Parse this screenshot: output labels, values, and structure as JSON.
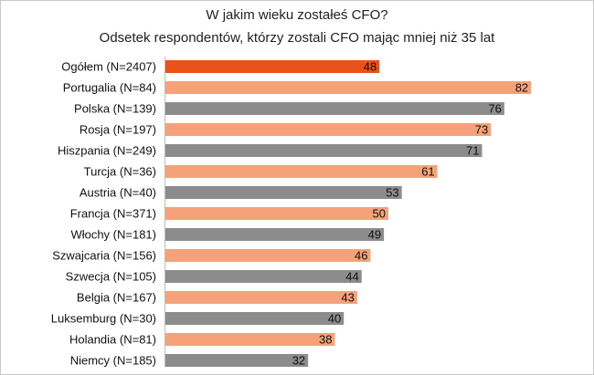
{
  "chart_data": {
    "type": "bar",
    "orientation": "horizontal",
    "title": "W jakim wieku zostałeś CFO?",
    "subtitle": "Odsetek respondentów, którzy zostali CFO mając mniej niż 35 lat",
    "xlim": [
      0,
      100
    ],
    "grid": false,
    "legend": "none",
    "categories": [
      "Ogółem (N=2407)",
      "Portugalia (N=84)",
      "Polska (N=139)",
      "Rosja (N=197)",
      "Hiszpania (N=249)",
      "Turcja (N=36)",
      "Austria (N=40)",
      "Francja (N=371)",
      "Włochy (N=181)",
      "Szwajcaria (N=156)",
      "Szwecja (N=105)",
      "Belgia (N=167)",
      "Luksemburg (N=30)",
      "Holandia (N=81)",
      "Niemcy (N=185)"
    ],
    "values": [
      48,
      82,
      76,
      73,
      71,
      61,
      53,
      50,
      49,
      46,
      44,
      43,
      40,
      38,
      32
    ],
    "bar_colors": [
      "#e8531c",
      "#f5a27a",
      "#8c8c8c",
      "#f5a27a",
      "#8c8c8c",
      "#f5a27a",
      "#8c8c8c",
      "#f5a27a",
      "#8c8c8c",
      "#f5a27a",
      "#8c8c8c",
      "#f5a27a",
      "#8c8c8c",
      "#f5a27a",
      "#8c8c8c"
    ]
  }
}
